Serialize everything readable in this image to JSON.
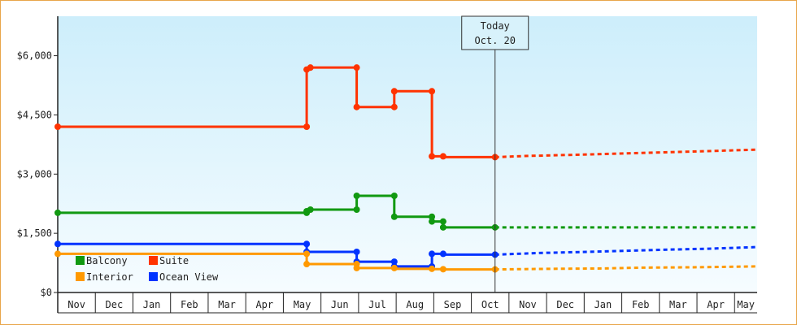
{
  "chart_data": {
    "type": "line",
    "title": "",
    "xlabel": "",
    "ylabel": "",
    "ylim": [
      0,
      7000
    ],
    "y_ticks": [
      {
        "value": 0,
        "label": "$0"
      },
      {
        "value": 1500,
        "label": "$1,500"
      },
      {
        "value": 3000,
        "label": "$3,000"
      },
      {
        "value": 4500,
        "label": "$4,500"
      },
      {
        "value": 6000,
        "label": "$6,000"
      }
    ],
    "x_months": [
      "Nov",
      "Dec",
      "Jan",
      "Feb",
      "Mar",
      "Apr",
      "May",
      "Jun",
      "Jul",
      "Aug",
      "Sep",
      "Oct",
      "Nov",
      "Dec",
      "Jan",
      "Feb",
      "Mar",
      "Apr",
      "May"
    ],
    "xlim": [
      0,
      18.6
    ],
    "grid": false,
    "legend_position": "bottom-left",
    "annotation": {
      "line1": "Today",
      "line2": "Oct. 20",
      "x": 11.63
    },
    "series": [
      {
        "name": "Suite",
        "color": "#ff3300",
        "points": [
          [
            0,
            4200
          ],
          [
            6.62,
            4200
          ],
          [
            6.62,
            5650
          ],
          [
            6.72,
            5650
          ],
          [
            6.72,
            5700
          ],
          [
            7.95,
            5700
          ],
          [
            7.95,
            4700
          ],
          [
            8.95,
            4700
          ],
          [
            8.95,
            5100
          ],
          [
            9.95,
            5100
          ],
          [
            9.95,
            3450
          ],
          [
            10.25,
            3450
          ],
          [
            10.25,
            3430
          ],
          [
            11.63,
            3430
          ]
        ],
        "markers": [
          [
            0,
            4200
          ],
          [
            6.62,
            4200
          ],
          [
            6.62,
            5650
          ],
          [
            6.72,
            5700
          ],
          [
            7.95,
            5700
          ],
          [
            7.95,
            4700
          ],
          [
            8.95,
            4700
          ],
          [
            8.95,
            5100
          ],
          [
            9.95,
            5100
          ],
          [
            9.95,
            3450
          ],
          [
            10.25,
            3450
          ],
          [
            11.63,
            3430
          ]
        ],
        "forecast": [
          [
            11.63,
            3430
          ],
          [
            12.5,
            3460
          ],
          [
            14.2,
            3500
          ],
          [
            15.6,
            3540
          ],
          [
            16.8,
            3570
          ],
          [
            18.6,
            3620
          ]
        ]
      },
      {
        "name": "Balcony",
        "color": "#119911",
        "points": [
          [
            0,
            2020
          ],
          [
            6.62,
            2020
          ],
          [
            6.62,
            2060
          ],
          [
            6.72,
            2060
          ],
          [
            6.72,
            2100
          ],
          [
            7.95,
            2100
          ],
          [
            7.95,
            2450
          ],
          [
            8.95,
            2450
          ],
          [
            8.95,
            1920
          ],
          [
            9.95,
            1920
          ],
          [
            9.95,
            1800
          ],
          [
            10.25,
            1800
          ],
          [
            10.25,
            1650
          ],
          [
            11.63,
            1650
          ]
        ],
        "markers": [
          [
            0,
            2020
          ],
          [
            6.62,
            2020
          ],
          [
            6.62,
            2060
          ],
          [
            6.72,
            2100
          ],
          [
            7.95,
            2100
          ],
          [
            7.95,
            2450
          ],
          [
            8.95,
            2450
          ],
          [
            8.95,
            1920
          ],
          [
            9.95,
            1920
          ],
          [
            9.95,
            1800
          ],
          [
            10.25,
            1800
          ],
          [
            10.25,
            1650
          ],
          [
            11.63,
            1650
          ]
        ],
        "forecast": [
          [
            11.63,
            1650
          ],
          [
            18.6,
            1650
          ]
        ]
      },
      {
        "name": "Ocean View",
        "color": "#0033ff",
        "points": [
          [
            0,
            1230
          ],
          [
            6.62,
            1230
          ],
          [
            6.62,
            1030
          ],
          [
            7.95,
            1030
          ],
          [
            7.95,
            780
          ],
          [
            8.95,
            780
          ],
          [
            8.95,
            660
          ],
          [
            9.95,
            660
          ],
          [
            9.95,
            980
          ],
          [
            10.25,
            980
          ],
          [
            10.25,
            960
          ],
          [
            11.63,
            960
          ]
        ],
        "markers": [
          [
            0,
            1230
          ],
          [
            6.62,
            1230
          ],
          [
            6.62,
            1030
          ],
          [
            7.95,
            1030
          ],
          [
            7.95,
            780
          ],
          [
            8.95,
            780
          ],
          [
            8.95,
            660
          ],
          [
            9.95,
            660
          ],
          [
            9.95,
            980
          ],
          [
            10.25,
            980
          ],
          [
            11.63,
            960
          ]
        ],
        "forecast": [
          [
            11.63,
            960
          ],
          [
            12.8,
            1000
          ],
          [
            14.5,
            1040
          ],
          [
            16.0,
            1080
          ],
          [
            17.3,
            1110
          ],
          [
            18.6,
            1150
          ]
        ]
      },
      {
        "name": "Interior",
        "color": "#ff9900",
        "points": [
          [
            0,
            980
          ],
          [
            6.62,
            980
          ],
          [
            6.62,
            720
          ],
          [
            7.95,
            720
          ],
          [
            7.95,
            620
          ],
          [
            8.95,
            620
          ],
          [
            8.95,
            600
          ],
          [
            9.95,
            600
          ],
          [
            9.95,
            590
          ],
          [
            10.25,
            590
          ],
          [
            10.25,
            585
          ],
          [
            11.63,
            585
          ]
        ],
        "markers": [
          [
            0,
            980
          ],
          [
            6.62,
            980
          ],
          [
            6.62,
            720
          ],
          [
            7.95,
            720
          ],
          [
            7.95,
            620
          ],
          [
            8.95,
            620
          ],
          [
            9.95,
            600
          ],
          [
            10.25,
            590
          ],
          [
            11.63,
            585
          ]
        ],
        "forecast": [
          [
            11.63,
            585
          ],
          [
            13.0,
            600
          ],
          [
            14.5,
            610
          ],
          [
            15.5,
            630
          ],
          [
            17.0,
            640
          ],
          [
            18.6,
            660
          ]
        ]
      }
    ],
    "legend": [
      {
        "name": "Balcony",
        "color": "#119911"
      },
      {
        "name": "Suite",
        "color": "#ff3300"
      },
      {
        "name": "Interior",
        "color": "#ff9900"
      },
      {
        "name": "Ocean View",
        "color": "#0033ff"
      }
    ]
  }
}
